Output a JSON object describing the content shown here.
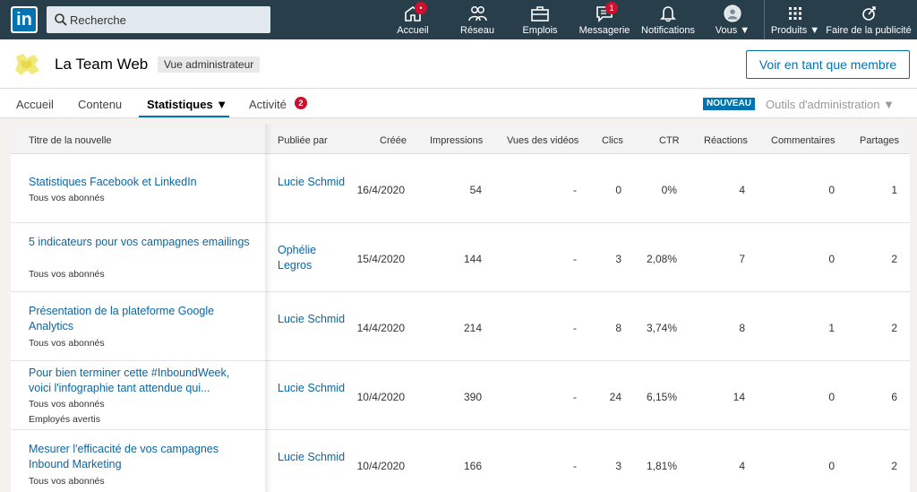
{
  "nav": {
    "search_placeholder": "Recherche",
    "items": [
      {
        "label": "Accueil",
        "badge": "•"
      },
      {
        "label": "Réseau"
      },
      {
        "label": "Emplois"
      },
      {
        "label": "Messagerie",
        "badge": "1"
      },
      {
        "label": "Notifications"
      },
      {
        "label": "Vous ▼"
      },
      {
        "label": "Produits ▼"
      },
      {
        "label": "Faire de la publicité"
      }
    ]
  },
  "page": {
    "org_name": "La Team Web",
    "admin_chip": "Vue administrateur",
    "view_member_button": "Voir en tant que membre"
  },
  "tabs": {
    "items": [
      "Accueil",
      "Contenu",
      "Statistiques ▼",
      "Activité"
    ],
    "activity_badge": "2",
    "new_chip": "NOUVEAU",
    "admin_tools": "Outils d'administration ▼"
  },
  "table": {
    "headers": [
      "Titre de la nouvelle",
      "Publiée par",
      "Créée",
      "Impressions",
      "Vues des vidéos",
      "Clics",
      "CTR",
      "Réactions",
      "Commentaires",
      "Partages"
    ],
    "rows": [
      {
        "title": "Statistiques Facebook et LinkedIn",
        "audience": "Tous vos abonnés",
        "audience2": "",
        "author": "Lucie Schmid",
        "date": "16/4/2020",
        "impressions": "54",
        "video_views": "-",
        "clicks": "0",
        "ctr": "0%",
        "reactions": "4",
        "comments": "0",
        "shares": "1"
      },
      {
        "title": "5 indicateurs pour vos campagnes emailings",
        "audience": "Tous vos abonnés",
        "audience2": "",
        "author": "Ophélie Legros",
        "date": "15/4/2020",
        "impressions": "144",
        "video_views": "-",
        "clicks": "3",
        "ctr": "2,08%",
        "reactions": "7",
        "comments": "0",
        "shares": "2"
      },
      {
        "title": "Présentation de la plateforme Google Analytics",
        "audience": "Tous vos abonnés",
        "audience2": "",
        "author": "Lucie Schmid",
        "date": "14/4/2020",
        "impressions": "214",
        "video_views": "-",
        "clicks": "8",
        "ctr": "3,74%",
        "reactions": "8",
        "comments": "1",
        "shares": "2"
      },
      {
        "title": "Pour bien terminer cette #InboundWeek, voici l'infographie tant attendue qui...",
        "audience": "Tous vos abonnés",
        "audience2": "Employés avertis",
        "author": "Lucie Schmid",
        "date": "10/4/2020",
        "impressions": "390",
        "video_views": "-",
        "clicks": "24",
        "ctr": "6,15%",
        "reactions": "14",
        "comments": "0",
        "shares": "6"
      },
      {
        "title": "Mesurer l'efficacité de vos campagnes Inbound Marketing",
        "audience": "Tous vos abonnés",
        "audience2": "",
        "author": "Lucie Schmid",
        "date": "10/4/2020",
        "impressions": "166",
        "video_views": "-",
        "clicks": "3",
        "ctr": "1,81%",
        "reactions": "4",
        "comments": "0",
        "shares": "2"
      }
    ]
  }
}
